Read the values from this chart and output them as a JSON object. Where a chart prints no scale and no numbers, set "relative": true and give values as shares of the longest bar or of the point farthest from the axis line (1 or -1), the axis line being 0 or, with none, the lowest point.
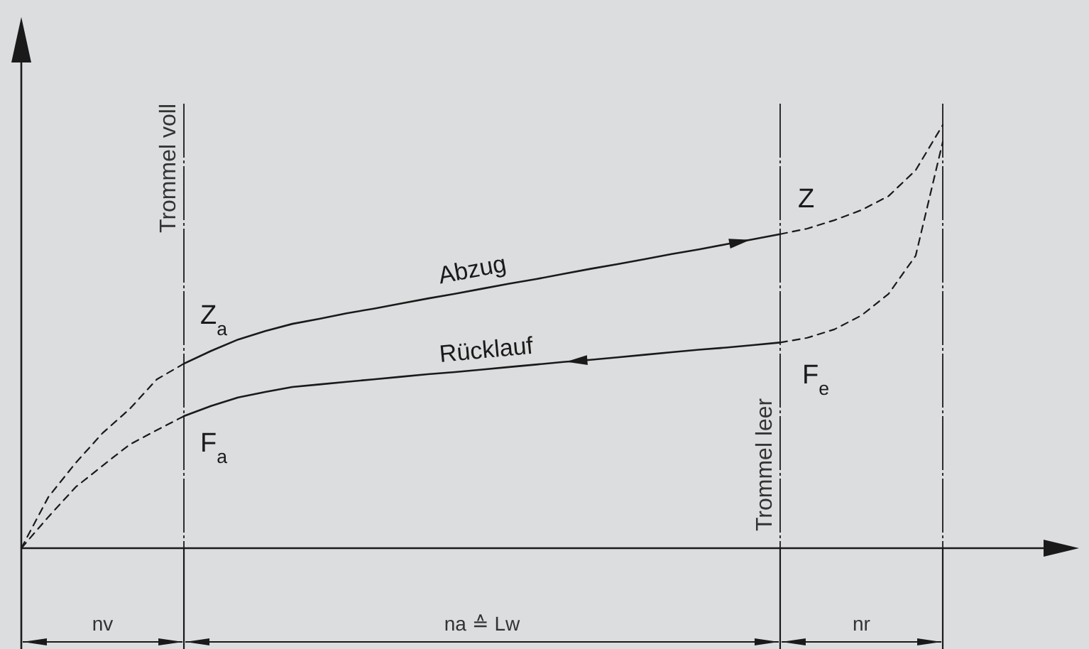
{
  "chart_data": {
    "type": "line",
    "relative": true,
    "marker": "none",
    "grid": "x",
    "categories": [
      null,
      null,
      null,
      null,
      null,
      null,
      null,
      null,
      null,
      null,
      null,
      null,
      null,
      null,
      null,
      null,
      null,
      null,
      null,
      null,
      null,
      null,
      null,
      null,
      null,
      null,
      null,
      null,
      null,
      null,
      null,
      null,
      null,
      null,
      null
    ],
    "series": [
      {
        "color": "#1a1a1a",
        "line_style": "dashed",
        "values": [
          0,
          0.121,
          0.201,
          0.272,
          0.329,
          0.399,
          0.436,
          null,
          null,
          null,
          null,
          null,
          null,
          null,
          null,
          null,
          null,
          null,
          null,
          null,
          null,
          null,
          null,
          null,
          null,
          null,
          null,
          null,
          null,
          null,
          null,
          null,
          null,
          null,
          null
        ]
      },
      {
        "name": "Abzug",
        "color": "#1a1a1a",
        "line_style": "solid",
        "values": [
          null,
          null,
          null,
          null,
          null,
          null,
          0.436,
          0.466,
          0.493,
          0.513,
          0.53,
          0.542,
          0.555,
          0.566,
          0.578,
          0.59,
          0.601,
          0.613,
          0.625,
          0.636,
          0.648,
          0.66,
          0.671,
          0.683,
          0.695,
          0.706,
          0.718,
          0.73,
          0.742,
          null,
          null,
          null,
          null,
          null,
          null
        ]
      },
      {
        "color": "#1a1a1a",
        "line_style": "dashed",
        "values": [
          null,
          null,
          null,
          null,
          null,
          null,
          null,
          null,
          null,
          null,
          null,
          null,
          null,
          null,
          null,
          null,
          null,
          null,
          null,
          null,
          null,
          null,
          null,
          null,
          null,
          null,
          null,
          null,
          0.742,
          0.755,
          0.775,
          0.799,
          0.832,
          0.893,
          1
        ]
      },
      {
        "color": "#1a1a1a",
        "line_style": "dashed",
        "values": [
          0,
          0.074,
          0.144,
          0.195,
          0.245,
          0.279,
          0.312,
          null,
          null,
          null,
          null,
          null,
          null,
          null,
          null,
          null,
          null,
          null,
          null,
          null,
          null,
          null,
          null,
          null,
          null,
          null,
          null,
          null,
          null,
          null,
          null,
          null,
          null,
          null,
          null
        ]
      },
      {
        "name": "Rücklauf",
        "color": "#1a1a1a",
        "line_style": "solid",
        "values": [
          null,
          null,
          null,
          null,
          null,
          null,
          0.312,
          0.336,
          0.356,
          0.369,
          0.381,
          0.387,
          0.393,
          0.399,
          0.405,
          0.411,
          0.416,
          0.422,
          0.428,
          0.434,
          0.44,
          0.445,
          0.451,
          0.457,
          0.463,
          0.469,
          0.474,
          0.48,
          0.486,
          null,
          null,
          null,
          null,
          null,
          null
        ]
      },
      {
        "color": "#1a1a1a",
        "line_style": "dashed",
        "values": [
          null,
          null,
          null,
          null,
          null,
          null,
          null,
          null,
          null,
          null,
          null,
          null,
          null,
          null,
          null,
          null,
          null,
          null,
          null,
          null,
          null,
          null,
          null,
          null,
          null,
          null,
          null,
          null,
          0.486,
          0.497,
          0.517,
          0.55,
          0.601,
          0.691,
          0.96
        ]
      }
    ],
    "annotations": [
      "Z$_{a}$",
      "F$_{a}$",
      "Z",
      "F$_{e}$",
      "Trommel voll",
      "Trommel leer",
      "nv",
      "na ≙ Lw",
      "nr"
    ]
  }
}
